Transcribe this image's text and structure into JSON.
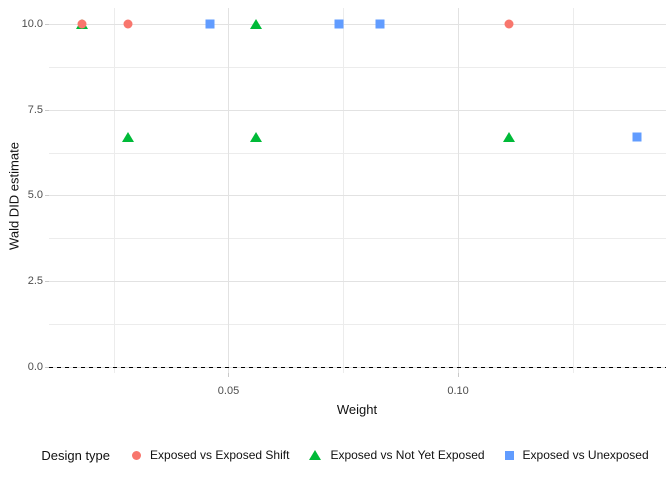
{
  "figure": {
    "background": "#FFFFFF"
  },
  "chart_data": {
    "type": "scatter",
    "title": "",
    "xlabel": "Weight",
    "ylabel": "Wald DID estimate",
    "xlim": [
      0.0109,
      0.1453
    ],
    "ylim": [
      -0.17,
      10.46
    ],
    "grid": {
      "major_color": "#E2E2E2",
      "minor_color": "#ECECEC",
      "tick_color": "#C9C9C9",
      "grid_on": true
    },
    "x_ticks": [
      {
        "v": 0.05,
        "label": "0.05"
      },
      {
        "v": 0.1,
        "label": "0.10"
      }
    ],
    "y_ticks": [
      {
        "v": 0.0,
        "label": "0.0"
      },
      {
        "v": 2.5,
        "label": "2.5"
      },
      {
        "v": 5.0,
        "label": "5.0"
      },
      {
        "v": 7.5,
        "label": "7.5"
      },
      {
        "v": 10.0,
        "label": "10.0"
      }
    ],
    "x_minor": [
      0.025,
      0.075,
      0.125
    ],
    "y_minor": [
      1.25,
      3.75,
      6.25,
      8.75
    ],
    "zero_line": {
      "y": 0.0,
      "style": "dashed",
      "color": "#000000"
    },
    "legend": {
      "title": "Design type",
      "position": "bottom"
    },
    "series": [
      {
        "name": "Exposed vs Exposed Shift",
        "marker": "circle",
        "color": "#F8766D",
        "points": [
          [
            0.018,
            10.0
          ],
          [
            0.028,
            10.0
          ],
          [
            0.111,
            10.0
          ]
        ]
      },
      {
        "name": "Exposed vs Not Yet Exposed",
        "marker": "triangle",
        "color": "#00BA38",
        "points": [
          [
            0.018,
            10.0
          ],
          [
            0.056,
            10.0
          ],
          [
            0.028,
            6.7
          ],
          [
            0.056,
            6.7
          ],
          [
            0.111,
            6.7
          ]
        ]
      },
      {
        "name": "Exposed vs Unexposed",
        "marker": "square",
        "color": "#619CFF",
        "points": [
          [
            0.046,
            10.0
          ],
          [
            0.074,
            10.0
          ],
          [
            0.083,
            10.0
          ],
          [
            0.139,
            6.7
          ]
        ]
      }
    ]
  }
}
